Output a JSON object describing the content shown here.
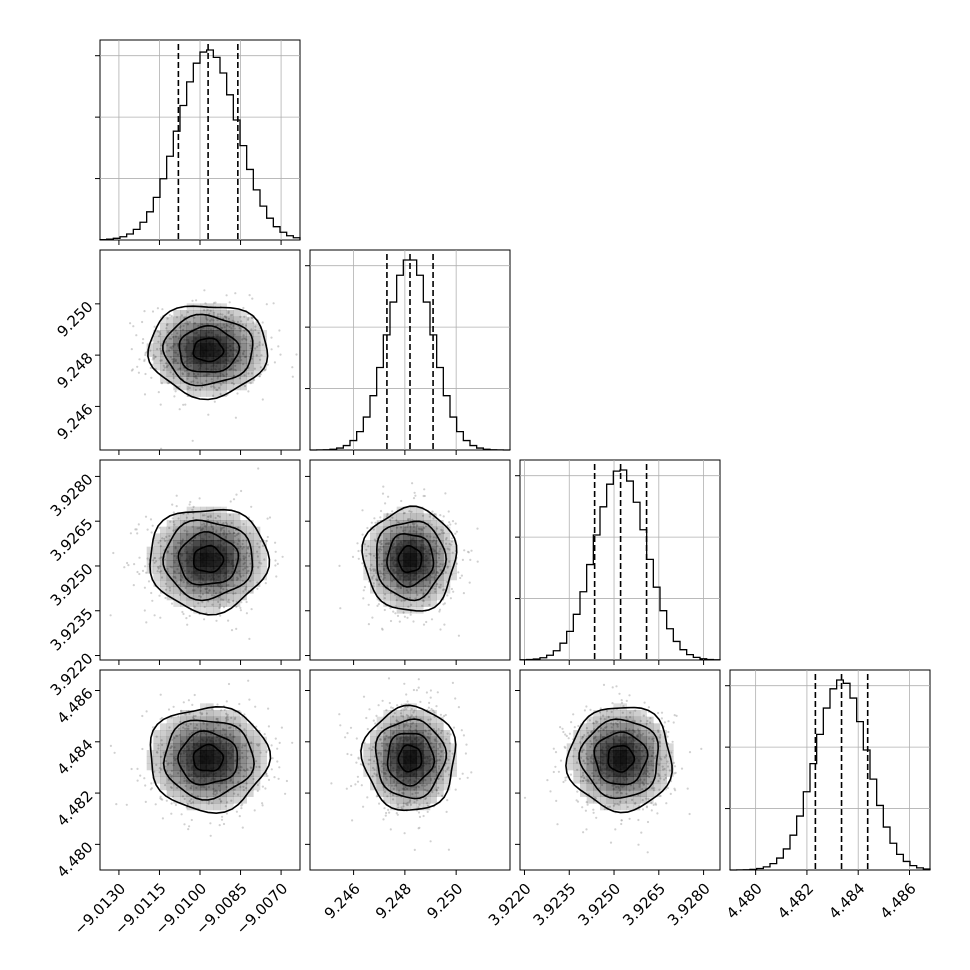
{
  "chart_data": {
    "type": "corner",
    "grid": true,
    "colors": {
      "line": "#000000",
      "points": "#a9a9a9",
      "grid": "#b0b0b0",
      "density": "#000000"
    },
    "parameters": [
      {
        "mean": -9.0097,
        "sigma": 0.0011,
        "range": [
          -9.0137,
          -9.0063
        ],
        "ticks": [
          -9.013,
          -9.0115,
          -9.01,
          -9.0085,
          -9.007
        ],
        "tick_labels": [
          "−9.0130",
          "−9.0115",
          "−9.0100",
          "−9.0085",
          "−9.0070"
        ],
        "quantiles": [
          -9.0108,
          -9.0097,
          -9.0086
        ],
        "hist_yticks": [
          4000,
          8000,
          12000
        ]
      },
      {
        "mean": 9.2482,
        "sigma": 0.0009,
        "range": [
          9.2443,
          9.2521
        ],
        "ticks": [
          9.246,
          9.248,
          9.25
        ],
        "tick_labels": [
          "9.246",
          "9.248",
          "9.250"
        ],
        "quantiles": [
          9.2473,
          9.2482,
          9.2491
        ],
        "hist_yticks": [
          4000,
          8000,
          12000
        ]
      },
      {
        "mean": 3.92522,
        "sigma": 0.00087,
        "range": [
          3.92185,
          3.92855
        ],
        "ticks": [
          3.922,
          3.9235,
          3.925,
          3.9265,
          3.928
        ],
        "tick_labels": [
          "3.9220",
          "3.9235",
          "3.9250",
          "3.9265",
          "3.9280"
        ],
        "quantiles": [
          3.92435,
          3.92522,
          3.92609
        ],
        "hist_yticks": [
          4000,
          8000,
          12000
        ]
      },
      {
        "mean": 4.48335,
        "sigma": 0.00102,
        "range": [
          4.479,
          4.4868
        ],
        "ticks": [
          4.48,
          4.482,
          4.484,
          4.486
        ],
        "tick_labels": [
          "4.480",
          "4.482",
          "4.484",
          "4.486"
        ],
        "quantiles": [
          4.48233,
          4.48335,
          4.48437
        ],
        "hist_yticks": [
          4000,
          8000,
          12000
        ]
      }
    ],
    "contour_levels_sigma": [
      0.5,
      1.0,
      1.5,
      2.0
    ],
    "bins": 30
  }
}
